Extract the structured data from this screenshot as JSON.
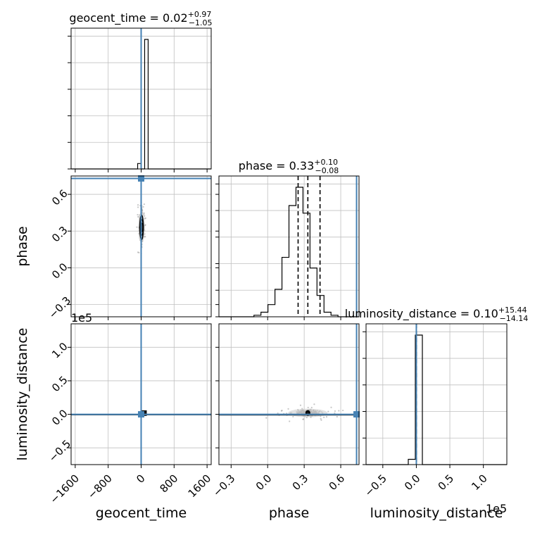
{
  "chart_data": {
    "type": "corner",
    "parameters": [
      "geocent_time",
      "phase",
      "luminosity_distance"
    ],
    "titles": [
      {
        "param": "geocent_time",
        "text": "geocent_time = 0.02",
        "sup": "+0.97",
        "sub": "−1.05"
      },
      {
        "param": "phase",
        "text": "phase = 0.33",
        "sup": "+0.10",
        "sub": "−0.08"
      },
      {
        "param": "luminosity_distance",
        "text": "luminosity_distance = 0.10",
        "sup": "+15.44",
        "sub": "−14.14"
      }
    ],
    "axis_labels": {
      "x": [
        "geocent_time",
        "phase",
        "luminosity_distance"
      ],
      "y": [
        "phase",
        "luminosity_distance"
      ]
    },
    "ticks": {
      "geocent_time": [
        "−1600",
        "−800",
        "0",
        "800",
        "1600"
      ],
      "phase_x": [
        "−0.3",
        "0.0",
        "0.3",
        "0.6"
      ],
      "phase_y": [
        "0.6",
        "0.3",
        "0.0",
        "−0.3"
      ],
      "luminosity_distance_x": [
        "−0.5",
        "0.0",
        "0.5",
        "1.0"
      ],
      "luminosity_distance_y": [
        "1.0",
        "0.5",
        "0.0",
        "−0.5"
      ]
    },
    "offset_text": "1e5",
    "ranges": {
      "geocent_time": [
        -1700,
        1700
      ],
      "phase": [
        -0.4,
        0.75
      ],
      "luminosity_distance": [
        -0.75,
        1.35
      ]
    },
    "truths": {
      "geocent_time": 0,
      "phase": 0.73,
      "luminosity_distance": 0
    },
    "quantiles": {
      "geocent_time": [
        -1.03,
        0.02,
        0.99
      ],
      "phase": [
        0.25,
        0.33,
        0.43
      ],
      "luminosity_distance": [
        -0.0001,
        1e-06,
        0.0002
      ]
    },
    "histograms": {
      "geocent_time": {
        "edges": [
          -1700,
          -1615,
          -1530,
          -1445,
          -1360,
          -1275,
          -1190,
          -1105,
          -1020,
          -935,
          -850,
          -765,
          -680,
          -595,
          -510,
          -425,
          -340,
          -255,
          -170,
          -85,
          0,
          85,
          170,
          255,
          340,
          425,
          510,
          595,
          680,
          765,
          850,
          935,
          1020,
          1105,
          1190,
          1275,
          1360,
          1445,
          1530,
          1615,
          1700
        ],
        "counts": [
          0,
          0,
          0,
          0,
          0,
          0,
          0,
          0,
          0,
          0,
          0,
          0,
          0,
          0,
          0,
          0,
          0,
          0,
          0,
          0.04,
          0,
          0.96,
          0,
          0,
          0,
          0,
          0,
          0,
          0,
          0,
          0,
          0,
          0,
          0,
          0,
          0,
          0,
          0,
          0,
          0
        ]
      },
      "phase": {
        "edges": [
          -0.4,
          -0.3425,
          -0.285,
          -0.2275,
          -0.17,
          -0.1125,
          -0.055,
          0.0025,
          0.06,
          0.1175,
          0.175,
          0.2325,
          0.29,
          0.3475,
          0.405,
          0.4625,
          0.52,
          0.5775,
          0.635,
          0.6925,
          0.75
        ],
        "counts": [
          0,
          0,
          0,
          0,
          0,
          0.01,
          0.03,
          0.08,
          0.18,
          0.39,
          0.73,
          0.85,
          0.68,
          0.32,
          0.14,
          0.03,
          0.01,
          0,
          0,
          0
        ]
      },
      "luminosity_distance": {
        "edges": [
          -0.75,
          -0.645,
          -0.54,
          -0.435,
          -0.33,
          -0.225,
          -0.12,
          -0.015,
          0.09,
          0.195,
          0.3,
          0.405,
          0.51,
          0.615,
          0.72,
          0.825,
          0.93,
          1.035,
          1.14,
          1.245,
          1.35
        ],
        "counts": [
          0,
          0,
          0,
          0,
          0,
          0,
          0.04,
          0.98,
          0,
          0,
          0,
          0,
          0,
          0,
          0,
          0,
          0,
          0,
          0,
          0
        ]
      }
    },
    "contours": {
      "phase_vs_geocent_time": [
        {
          "cx": 10,
          "cy": 0.33,
          "rx": 35,
          "ry": 0.1
        },
        {
          "cx": 10,
          "cy": 0.33,
          "rx": 24,
          "ry": 0.065
        },
        {
          "cx": 10,
          "cy": 0.33,
          "rx": 13,
          "ry": 0.035
        }
      ],
      "luminosity_distance_vs_phase": [
        {
          "cx": 0.33,
          "cy": 0.02,
          "rx": 0.09,
          "ry": 0.035
        },
        {
          "cx": 0.33,
          "cy": 0.02,
          "rx": 0.05,
          "ry": 0.02
        }
      ]
    },
    "grid": true,
    "colors": {
      "truth": "#4682b4",
      "hist": "#000000",
      "points": "#999999",
      "grid": "#c0c0c0"
    }
  }
}
